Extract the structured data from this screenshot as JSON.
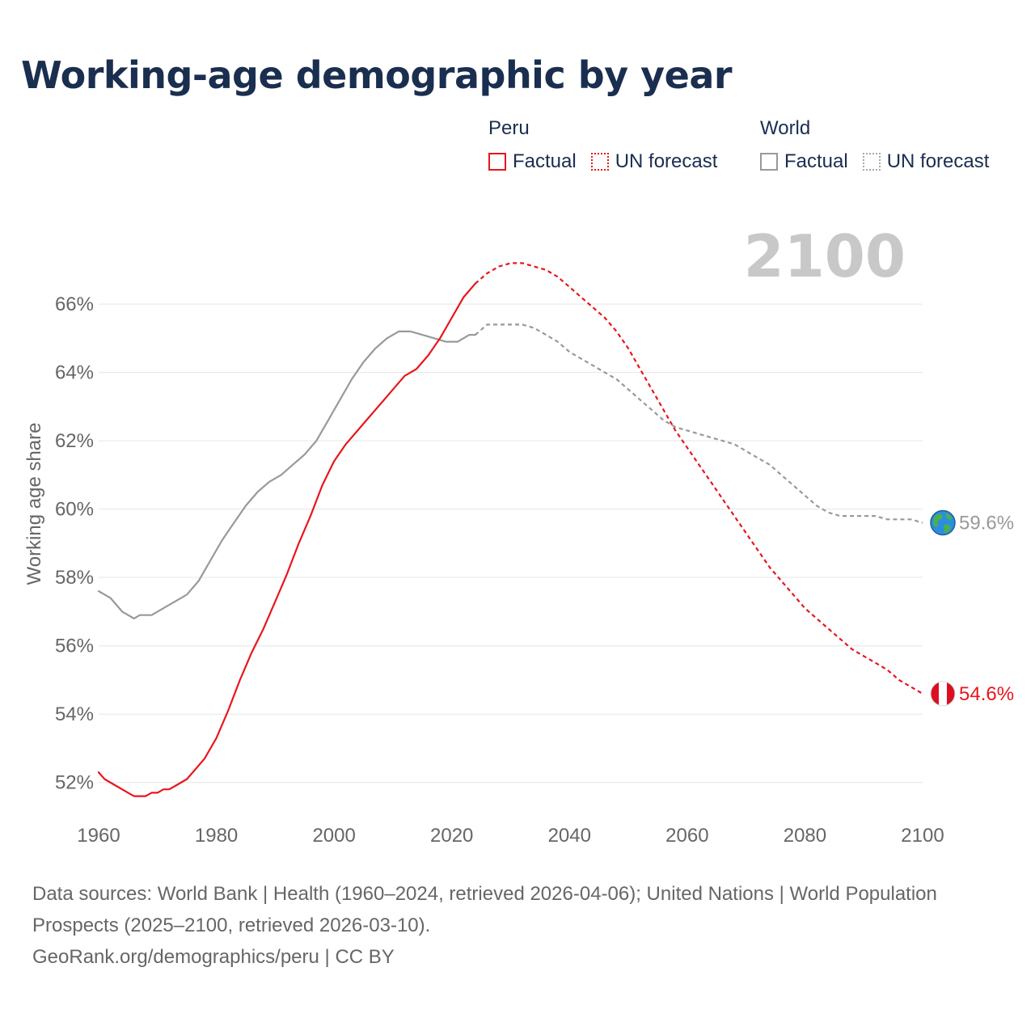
{
  "title": "Working-age demographic by year",
  "legend": {
    "peru": {
      "title": "Peru",
      "factual": "Factual",
      "forecast": "UN forecast"
    },
    "world": {
      "title": "World",
      "factual": "Factual",
      "forecast": "UN forecast"
    }
  },
  "colors": {
    "peru": "#e8161c",
    "world": "#999999",
    "title": "#1a2e4f",
    "year_label": "#c8c8c8",
    "axis_text": "#666666"
  },
  "footer": {
    "sources": "Data sources: World Bank | Health (1960–2024, retrieved 2026-04-06); United Nations | World Population Prospects (2025–2100, retrieved 2026-03-10).",
    "credit": "GeoRank.org/demographics/peru | CC BY"
  },
  "chart_data": {
    "type": "line",
    "title": "Working-age demographic by year",
    "current_year_label": "2100",
    "xlabel": "",
    "ylabel": "Working age share",
    "xlim": [
      1960,
      2100
    ],
    "ylim": [
      51,
      67.8
    ],
    "x_ticks": [
      1960,
      1980,
      2000,
      2020,
      2040,
      2060,
      2080,
      2100
    ],
    "y_ticks": [
      52,
      54,
      56,
      58,
      60,
      62,
      64,
      66
    ],
    "y_tick_labels": [
      "52%",
      "54%",
      "56%",
      "58%",
      "60%",
      "62%",
      "64%",
      "66%"
    ],
    "grid": true,
    "series": [
      {
        "name": "Peru",
        "kind": "factual",
        "color": "#e8161c",
        "points": [
          [
            1960,
            52.3
          ],
          [
            1961,
            52.1
          ],
          [
            1963,
            51.9
          ],
          [
            1965,
            51.7
          ],
          [
            1966,
            51.6
          ],
          [
            1968,
            51.6
          ],
          [
            1969,
            51.7
          ],
          [
            1970,
            51.7
          ],
          [
            1971,
            51.8
          ],
          [
            1972,
            51.8
          ],
          [
            1973,
            51.9
          ],
          [
            1975,
            52.1
          ],
          [
            1978,
            52.7
          ],
          [
            1980,
            53.3
          ],
          [
            1982,
            54.1
          ],
          [
            1984,
            55.0
          ],
          [
            1986,
            55.8
          ],
          [
            1988,
            56.5
          ],
          [
            1990,
            57.3
          ],
          [
            1992,
            58.1
          ],
          [
            1994,
            59.0
          ],
          [
            1996,
            59.8
          ],
          [
            1998,
            60.7
          ],
          [
            2000,
            61.4
          ],
          [
            2002,
            61.9
          ],
          [
            2004,
            62.3
          ],
          [
            2006,
            62.7
          ],
          [
            2008,
            63.1
          ],
          [
            2010,
            63.5
          ],
          [
            2012,
            63.9
          ],
          [
            2014,
            64.1
          ],
          [
            2016,
            64.5
          ],
          [
            2018,
            65.0
          ],
          [
            2020,
            65.6
          ],
          [
            2022,
            66.2
          ],
          [
            2024,
            66.6
          ]
        ]
      },
      {
        "name": "Peru",
        "kind": "forecast",
        "color": "#e8161c",
        "points": [
          [
            2024,
            66.6
          ],
          [
            2026,
            66.9
          ],
          [
            2028,
            67.1
          ],
          [
            2030,
            67.2
          ],
          [
            2032,
            67.2
          ],
          [
            2034,
            67.1
          ],
          [
            2036,
            67.0
          ],
          [
            2038,
            66.8
          ],
          [
            2040,
            66.5
          ],
          [
            2042,
            66.2
          ],
          [
            2044,
            65.9
          ],
          [
            2046,
            65.6
          ],
          [
            2048,
            65.2
          ],
          [
            2050,
            64.7
          ],
          [
            2052,
            64.1
          ],
          [
            2054,
            63.5
          ],
          [
            2056,
            62.9
          ],
          [
            2058,
            62.3
          ],
          [
            2060,
            61.8
          ],
          [
            2062,
            61.3
          ],
          [
            2064,
            60.8
          ],
          [
            2066,
            60.3
          ],
          [
            2068,
            59.8
          ],
          [
            2070,
            59.3
          ],
          [
            2072,
            58.8
          ],
          [
            2074,
            58.3
          ],
          [
            2076,
            57.9
          ],
          [
            2078,
            57.5
          ],
          [
            2080,
            57.1
          ],
          [
            2082,
            56.8
          ],
          [
            2084,
            56.5
          ],
          [
            2086,
            56.2
          ],
          [
            2088,
            55.9
          ],
          [
            2090,
            55.7
          ],
          [
            2092,
            55.5
          ],
          [
            2094,
            55.3
          ],
          [
            2096,
            55.0
          ],
          [
            2098,
            54.8
          ],
          [
            2100,
            54.6
          ]
        ]
      },
      {
        "name": "World",
        "kind": "factual",
        "color": "#999999",
        "points": [
          [
            1960,
            57.6
          ],
          [
            1962,
            57.4
          ],
          [
            1964,
            57.0
          ],
          [
            1966,
            56.8
          ],
          [
            1967,
            56.9
          ],
          [
            1969,
            56.9
          ],
          [
            1971,
            57.1
          ],
          [
            1973,
            57.3
          ],
          [
            1975,
            57.5
          ],
          [
            1977,
            57.9
          ],
          [
            1979,
            58.5
          ],
          [
            1981,
            59.1
          ],
          [
            1983,
            59.6
          ],
          [
            1985,
            60.1
          ],
          [
            1987,
            60.5
          ],
          [
            1989,
            60.8
          ],
          [
            1991,
            61.0
          ],
          [
            1993,
            61.3
          ],
          [
            1995,
            61.6
          ],
          [
            1997,
            62.0
          ],
          [
            1999,
            62.6
          ],
          [
            2001,
            63.2
          ],
          [
            2003,
            63.8
          ],
          [
            2005,
            64.3
          ],
          [
            2007,
            64.7
          ],
          [
            2009,
            65.0
          ],
          [
            2011,
            65.2
          ],
          [
            2013,
            65.2
          ],
          [
            2015,
            65.1
          ],
          [
            2017,
            65.0
          ],
          [
            2019,
            64.9
          ],
          [
            2021,
            64.9
          ],
          [
            2023,
            65.1
          ],
          [
            2024,
            65.1
          ]
        ]
      },
      {
        "name": "World",
        "kind": "forecast",
        "color": "#999999",
        "points": [
          [
            2024,
            65.1
          ],
          [
            2026,
            65.4
          ],
          [
            2028,
            65.4
          ],
          [
            2030,
            65.4
          ],
          [
            2032,
            65.4
          ],
          [
            2034,
            65.3
          ],
          [
            2036,
            65.1
          ],
          [
            2038,
            64.9
          ],
          [
            2040,
            64.6
          ],
          [
            2042,
            64.4
          ],
          [
            2044,
            64.2
          ],
          [
            2046,
            64.0
          ],
          [
            2048,
            63.8
          ],
          [
            2050,
            63.5
          ],
          [
            2052,
            63.2
          ],
          [
            2054,
            62.9
          ],
          [
            2056,
            62.6
          ],
          [
            2058,
            62.4
          ],
          [
            2060,
            62.3
          ],
          [
            2062,
            62.2
          ],
          [
            2064,
            62.1
          ],
          [
            2066,
            62.0
          ],
          [
            2068,
            61.9
          ],
          [
            2070,
            61.7
          ],
          [
            2072,
            61.5
          ],
          [
            2074,
            61.3
          ],
          [
            2076,
            61.0
          ],
          [
            2078,
            60.7
          ],
          [
            2080,
            60.4
          ],
          [
            2082,
            60.1
          ],
          [
            2084,
            59.9
          ],
          [
            2086,
            59.8
          ],
          [
            2088,
            59.8
          ],
          [
            2090,
            59.8
          ],
          [
            2092,
            59.8
          ],
          [
            2094,
            59.7
          ],
          [
            2096,
            59.7
          ],
          [
            2098,
            59.7
          ],
          [
            2100,
            59.6
          ]
        ]
      }
    ],
    "end_labels": [
      {
        "series": "World",
        "value": 59.6,
        "text": "59.6%",
        "icon": "globe-icon"
      },
      {
        "series": "Peru",
        "value": 54.6,
        "text": "54.6%",
        "icon": "peru-flag-icon"
      }
    ]
  }
}
